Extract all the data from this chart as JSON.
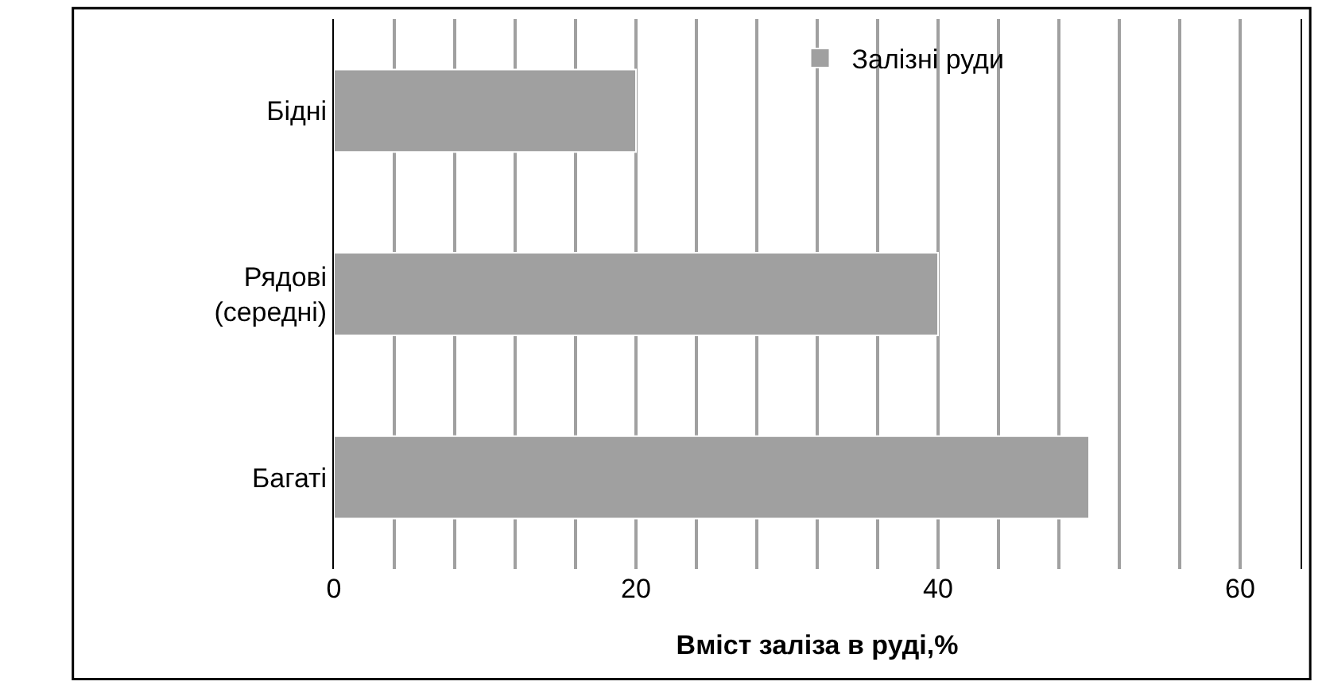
{
  "chart_data": {
    "type": "bar",
    "orientation": "horizontal",
    "xlabel": "Вміст заліза в руді,%",
    "categories": [
      "Бідні",
      "Рядові (середні)",
      "Багаті"
    ],
    "series": [
      {
        "name": "Залізні руди",
        "color": "#a0a0a0",
        "values": [
          20,
          40,
          50
        ]
      }
    ],
    "xlim": [
      0,
      64
    ],
    "xticks": [
      0,
      {
        "value": 4,
        "label": null
      },
      {
        "value": 8,
        "label": null
      },
      {
        "value": 12,
        "label": null
      },
      {
        "value": 16,
        "label": null
      },
      20,
      {
        "value": 24,
        "label": null
      },
      {
        "value": 28,
        "label": null
      },
      {
        "value": 32,
        "label": null
      },
      {
        "value": 36,
        "label": null
      },
      40,
      {
        "value": 44,
        "label": null
      },
      {
        "value": 48,
        "label": null
      },
      {
        "value": 52,
        "label": null
      },
      {
        "value": 56,
        "label": null
      },
      60,
      {
        "value": 64,
        "label": null
      }
    ],
    "grid": "x",
    "legend": "top right"
  }
}
